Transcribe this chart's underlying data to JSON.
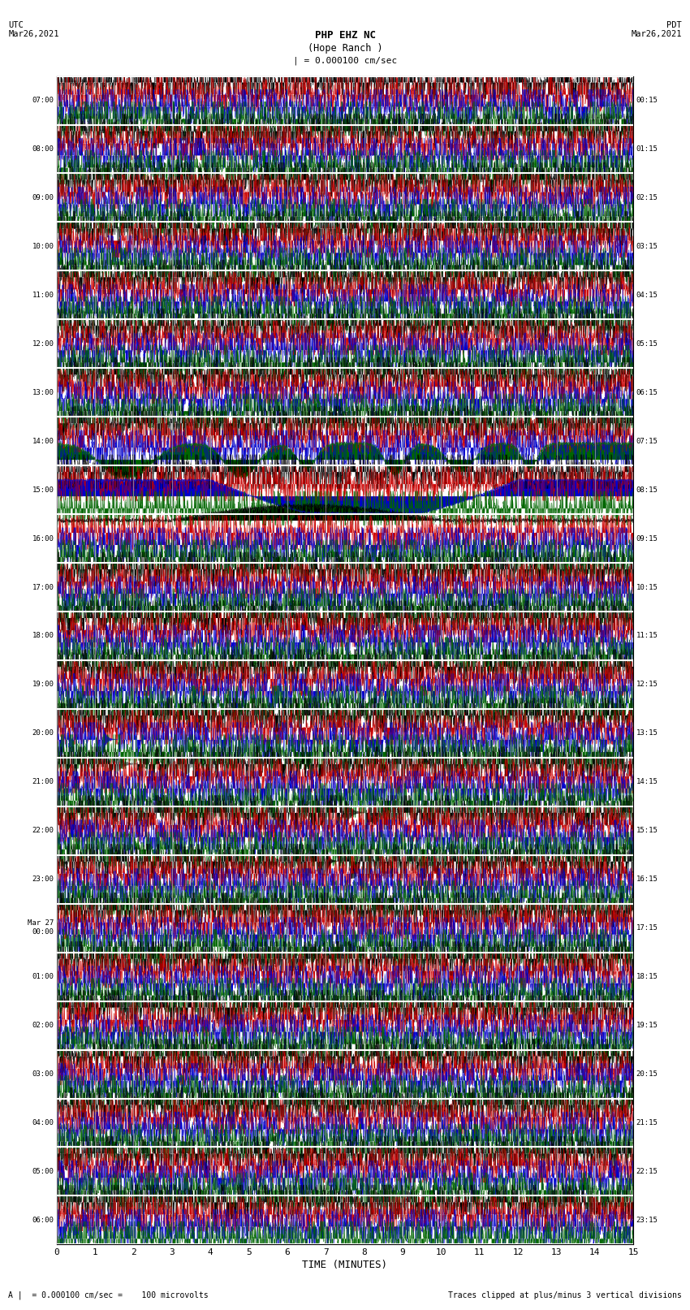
{
  "title_line1": "PHP EHZ NC",
  "title_line2": "(Hope Ranch )",
  "title_line3": "| = 0.000100 cm/sec",
  "left_header_line1": "UTC",
  "left_header_line2": "Mar26,2021",
  "right_header_line1": "PDT",
  "right_header_line2": "Mar26,2021",
  "xlabel": "TIME (MINUTES)",
  "footer_left": "A |  = 0.000100 cm/sec =    100 microvolts",
  "footer_right": "Traces clipped at plus/minus 3 vertical divisions",
  "bg_color": "#ffffff",
  "trace_colors": [
    "#000000",
    "#cc0000",
    "#0000cc",
    "#006600"
  ],
  "row_labels_left": [
    "07:00",
    "08:00",
    "09:00",
    "10:00",
    "11:00",
    "12:00",
    "13:00",
    "14:00",
    "15:00",
    "16:00",
    "17:00",
    "18:00",
    "19:00",
    "20:00",
    "21:00",
    "22:00",
    "23:00",
    "Mar 27\n00:00",
    "01:00",
    "02:00",
    "03:00",
    "04:00",
    "05:00",
    "06:00"
  ],
  "row_labels_right": [
    "00:15",
    "01:15",
    "02:15",
    "03:15",
    "04:15",
    "05:15",
    "06:15",
    "07:15",
    "08:15",
    "09:15",
    "10:15",
    "11:15",
    "12:15",
    "13:15",
    "14:15",
    "15:15",
    "16:15",
    "17:15",
    "18:15",
    "19:15",
    "20:15",
    "21:15",
    "22:15",
    "23:15"
  ],
  "num_rows": 24,
  "traces_per_row": 4,
  "x_ticks": [
    0,
    1,
    2,
    3,
    4,
    5,
    6,
    7,
    8,
    9,
    10,
    11,
    12,
    13,
    14,
    15
  ],
  "num_points": 3000,
  "noise_amplitude": 0.38,
  "grid_color": "#aaaaaa",
  "separator_color": "#ffffff"
}
